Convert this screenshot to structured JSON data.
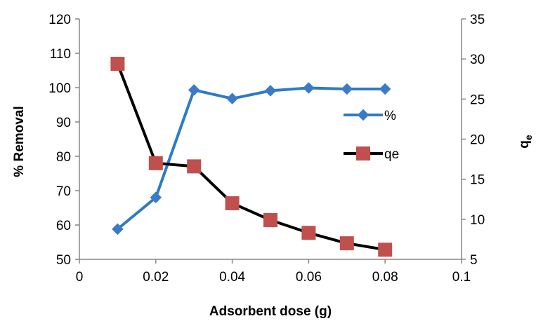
{
  "chart_data": {
    "type": "line",
    "title": "",
    "xlabel": "Adsorbent dose (g)",
    "ylabel": "% Removal",
    "y2label_main": "q",
    "y2label_sub": "e",
    "xlim": [
      0,
      0.1
    ],
    "ylim": [
      50,
      120
    ],
    "y2lim": [
      5,
      35
    ],
    "x_ticks": [
      "0",
      "0.02",
      "0.04",
      "0.06",
      "0.08",
      "0.1"
    ],
    "y_ticks": [
      "50",
      "60",
      "70",
      "80",
      "90",
      "100",
      "110",
      "120"
    ],
    "y2_ticks": [
      "5",
      "10",
      "15",
      "20",
      "25",
      "30",
      "35"
    ],
    "grid": false,
    "legend_position": "right",
    "series": [
      {
        "name": "%",
        "axis": "left",
        "marker": "diamond",
        "color": "#2e7ac6",
        "marker_color": "#3a7bc8",
        "x": [
          0.01,
          0.02,
          0.03,
          0.04,
          0.05,
          0.06,
          0.07,
          0.08
        ],
        "values": [
          58.8,
          68.0,
          99.3,
          96.8,
          99.1,
          99.9,
          99.6,
          99.6
        ]
      },
      {
        "name": "qe",
        "axis": "right",
        "marker": "square",
        "color": "#000000",
        "marker_color": "#c0504d",
        "x": [
          0.01,
          0.02,
          0.03,
          0.04,
          0.05,
          0.06,
          0.07,
          0.08
        ],
        "values": [
          29.4,
          17.0,
          16.6,
          12.0,
          9.9,
          8.3,
          7.0,
          6.2
        ]
      }
    ]
  }
}
